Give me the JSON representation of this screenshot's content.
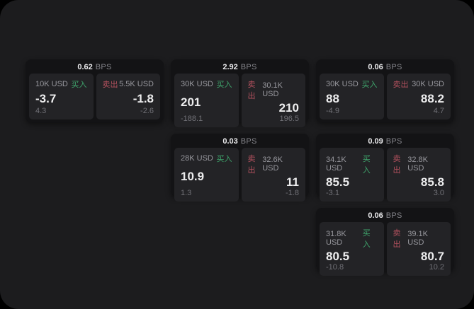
{
  "labels": {
    "bps": "BPS",
    "buy": "买入",
    "sell": "卖出"
  },
  "colors": {
    "background": "#000000",
    "surface": "#1c1c1e",
    "card": "#131315",
    "panel": "#232326",
    "buy_green": "#3fa56c",
    "sell_red": "#b3515e"
  },
  "cards": [
    {
      "bps": "0.62",
      "buy": {
        "amount": "10K USD",
        "value": "-3.7",
        "sub": "4.3"
      },
      "sell": {
        "amount": "5.5K USD",
        "value": "-1.8",
        "sub": "-2.6"
      }
    },
    {
      "bps": "2.92",
      "buy": {
        "amount": "30K USD",
        "value": "201",
        "sub": "-188.1"
      },
      "sell": {
        "amount": "30.1K USD",
        "value": "210",
        "sub": "196.5"
      }
    },
    {
      "bps": "0.06",
      "buy": {
        "amount": "30K USD",
        "value": "88",
        "sub": "-4.9"
      },
      "sell": {
        "amount": "30K USD",
        "value": "88.2",
        "sub": "4.7"
      }
    },
    {
      "bps": "0.03",
      "buy": {
        "amount": "28K USD",
        "value": "10.9",
        "sub": "1.3"
      },
      "sell": {
        "amount": "32.6K USD",
        "value": "11",
        "sub": "-1.8"
      }
    },
    {
      "bps": "0.09",
      "buy": {
        "amount": "34.1K USD",
        "value": "85.5",
        "sub": "-3.1"
      },
      "sell": {
        "amount": "32.8K USD",
        "value": "85.8",
        "sub": "3.0"
      }
    },
    {
      "bps": "0.06",
      "buy": {
        "amount": "31.8K USD",
        "value": "80.5",
        "sub": "-10.8"
      },
      "sell": {
        "amount": "39.1K USD",
        "value": "80.7",
        "sub": "10.2"
      }
    }
  ]
}
